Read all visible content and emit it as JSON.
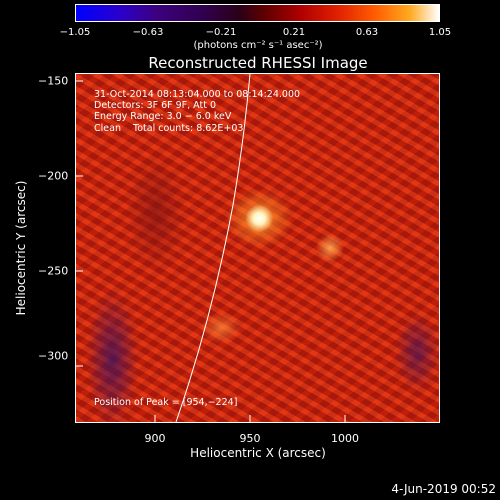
{
  "colorbar": {
    "ticks": [
      "−1.05",
      "−0.63",
      "−0.21",
      "0.21",
      "0.63",
      "1.05"
    ],
    "unit": "(photons cm⁻² s⁻¹ asec⁻²)"
  },
  "title": "Reconstructed RHESSI Image",
  "annotations": {
    "time": "31-Oct-2014 08:13:04.000 to 08:14:24.000",
    "detectors": "Detectors: 3F 6F 9F, Att 0",
    "energy": "Energy Range: 3.0 − 6.0 keV",
    "clean": "Clean    Total counts: 8.62E+03",
    "peak": "Position of Peak = [954,−224]"
  },
  "axes": {
    "xlabel": "Heliocentric X (arcsec)",
    "ylabel": "Heliocentric Y (arcsec)",
    "xticks": [
      "900",
      "950",
      "1000"
    ],
    "yticks": [
      "−150",
      "−200",
      "−250",
      "−300"
    ]
  },
  "footer_date": "4-Jun-2019 00:52"
}
